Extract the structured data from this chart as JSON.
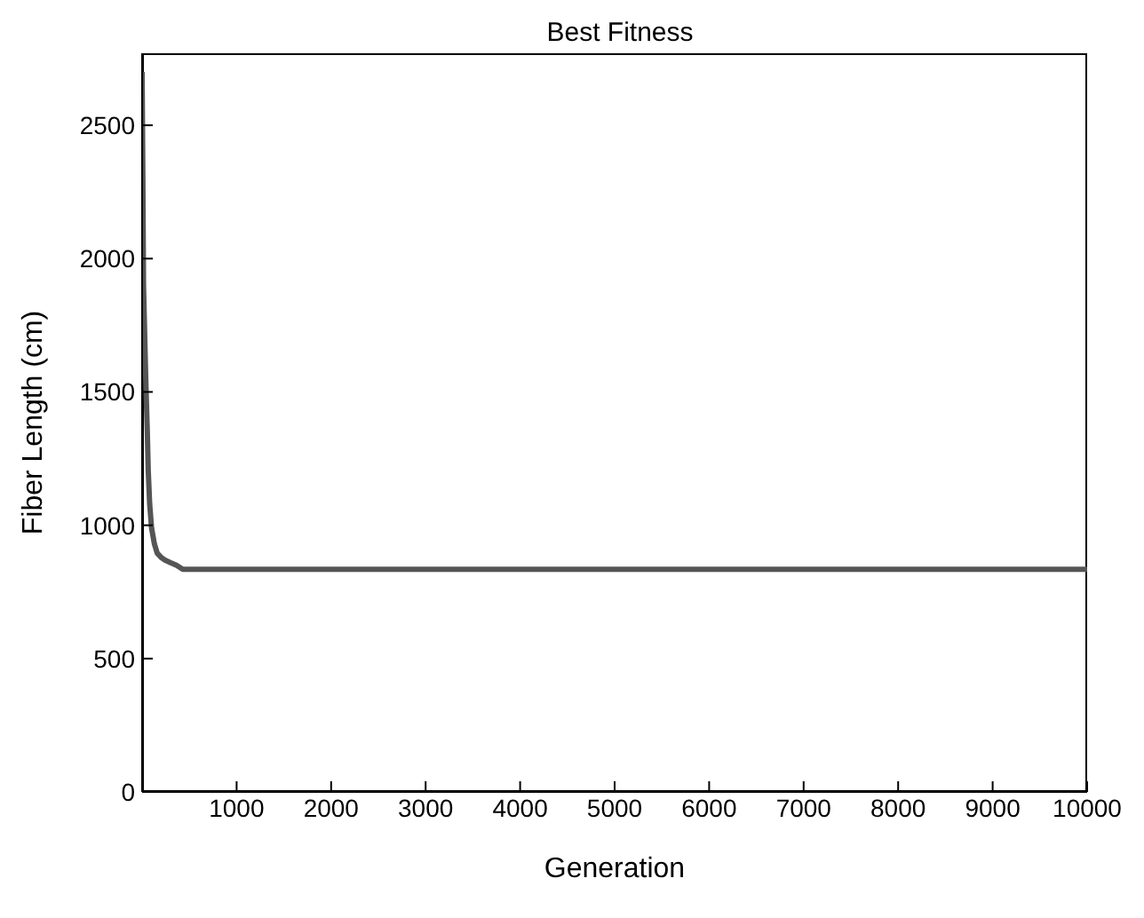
{
  "chart_data": {
    "type": "line",
    "title": "Best Fitness",
    "xlabel": "Generation",
    "ylabel": "Fiber Length (cm)",
    "xlim": [
      0,
      10000
    ],
    "xticks": [
      1000,
      2000,
      3000,
      4000,
      5000,
      6000,
      7000,
      8000,
      9000,
      10000
    ],
    "ylim": [
      0,
      2770
    ],
    "yticks": [
      0,
      500,
      1000,
      1500,
      2000,
      2500
    ],
    "grid": false,
    "legend": false,
    "marker": "none",
    "line_style": "solid",
    "series": [
      {
        "color": "#555555",
        "x": [
          0,
          8,
          15,
          25,
          40,
          55,
          65,
          80,
          100,
          130,
          160,
          200,
          240,
          300,
          365,
          430,
          1000,
          3000,
          5000,
          7000,
          10000
        ],
        "values": [
          2700,
          2300,
          1900,
          1750,
          1530,
          1350,
          1205,
          1080,
          990,
          930,
          895,
          880,
          870,
          860,
          850,
          835,
          835,
          835,
          835,
          835,
          835
        ]
      }
    ]
  }
}
